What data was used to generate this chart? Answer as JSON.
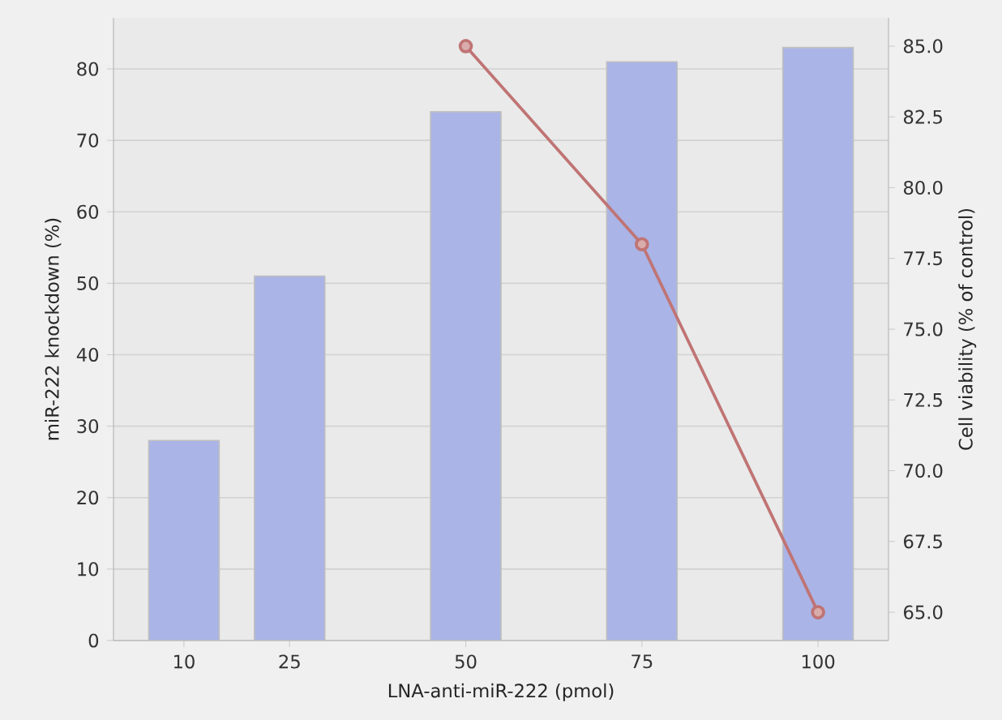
{
  "chart_data": {
    "type": "bar",
    "xlabel": "LNA-anti-miR-222 (pmol)",
    "ylabel": "miR-222 knockdown (%)",
    "y2label": "Cell viability (% of control)",
    "x": [
      10,
      25,
      50,
      75,
      100
    ],
    "xlim": [
      0,
      110
    ],
    "xticks": [
      10,
      25,
      50,
      75,
      100
    ],
    "ylim": [
      0,
      87.15
    ],
    "yticks": [
      0,
      10,
      20,
      30,
      40,
      50,
      60,
      70,
      80
    ],
    "y2lim": [
      64,
      86
    ],
    "y2ticks": [
      {
        "value": 65,
        "label": "65.0"
      },
      {
        "value": 67.5,
        "label": "67.5"
      },
      {
        "value": 70,
        "label": "70.0"
      },
      {
        "value": 72.5,
        "label": "72.5"
      },
      {
        "value": 75,
        "label": "75.0"
      },
      {
        "value": 77.5,
        "label": "77.5"
      },
      {
        "value": 80,
        "label": "80.0"
      },
      {
        "value": 82.5,
        "label": "82.5"
      },
      {
        "value": 85,
        "label": "85.0"
      }
    ],
    "grid": "y",
    "series": [
      {
        "color": "#aab4e6",
        "values": [
          28,
          51,
          74,
          81,
          83
        ]
      },
      {
        "type": "line",
        "axis": "y2",
        "color": "#c07474",
        "x": [
          50,
          75,
          100
        ],
        "values": [
          85,
          78,
          65
        ],
        "marker": "circle"
      }
    ]
  }
}
